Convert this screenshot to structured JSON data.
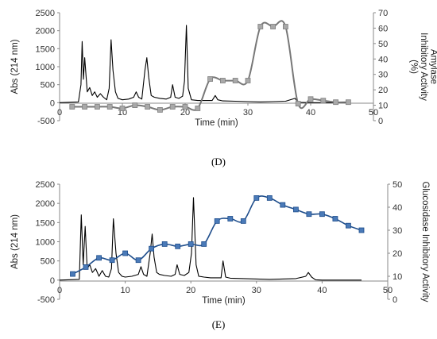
{
  "chart_data": [
    {
      "type": "line",
      "panel_label": "(D)",
      "xlabel": "Time (min)",
      "ylabel": "Abs (214 nm)",
      "ylabel_right": "Amylase Inhibitory Activity (%)",
      "xlim": [
        0,
        50
      ],
      "xticks": [
        "0",
        "10",
        "20",
        "30",
        "40",
        "50"
      ],
      "ylim": [
        -500,
        2500
      ],
      "yticks": [
        "-500",
        "0",
        "500",
        "1000",
        "1500",
        "2000",
        "2500"
      ],
      "ylim_right": [
        0,
        70
      ],
      "yticks_right": [
        "0",
        "10",
        "20",
        "30",
        "40",
        "50",
        "60",
        "70"
      ],
      "absorbance": {
        "x": [
          0,
          3,
          3.4,
          3.6,
          3.8,
          4.0,
          4.4,
          4.8,
          5.2,
          5.6,
          6.0,
          6.5,
          7.0,
          7.5,
          7.9,
          8.2,
          8.5,
          8.9,
          9.3,
          10,
          11,
          11.8,
          12.2,
          12.6,
          13.1,
          13.6,
          13.9,
          14.2,
          14.6,
          15.1,
          16,
          17,
          17.7,
          18.0,
          18.4,
          19,
          19.6,
          19.9,
          20.2,
          20.5,
          21,
          22,
          24.3,
          24.8,
          25.2,
          26,
          28,
          30,
          32,
          34,
          36,
          37.5,
          38,
          40,
          42,
          44,
          46
        ],
        "y": [
          0,
          20,
          500,
          1700,
          650,
          1250,
          300,
          420,
          200,
          300,
          150,
          250,
          150,
          80,
          400,
          1750,
          900,
          300,
          120,
          80,
          100,
          150,
          300,
          150,
          100,
          900,
          1250,
          700,
          200,
          150,
          120,
          100,
          150,
          500,
          150,
          120,
          180,
          600,
          2150,
          400,
          80,
          60,
          60,
          200,
          80,
          50,
          40,
          30,
          20,
          30,
          40,
          120,
          10,
          0,
          0,
          0,
          0
        ]
      },
      "activity": {
        "x": [
          2,
          4,
          6,
          8,
          10,
          12,
          14,
          16,
          18,
          20,
          22,
          24,
          26,
          28,
          30,
          32,
          34,
          36,
          38,
          40,
          42,
          44,
          46
        ],
        "y": [
          9,
          9,
          9,
          9,
          8,
          10,
          9,
          7,
          9,
          9,
          8,
          27,
          26,
          26,
          26,
          61,
          61,
          61,
          11,
          14,
          13,
          12,
          12
        ]
      }
    },
    {
      "type": "line",
      "panel_label": "(E)",
      "xlabel": "Time (min)",
      "ylabel": "Abs (214 nm)",
      "ylabel_right": "Glucosidase Inhibitory Activity",
      "xlim": [
        0,
        50
      ],
      "xticks": [
        "0",
        "10",
        "20",
        "30",
        "40",
        "50"
      ],
      "ylim": [
        -500,
        2500
      ],
      "yticks": [
        "-500",
        "0",
        "500",
        "1000",
        "1500",
        "2000",
        "2500"
      ],
      "ylim_right": [
        0,
        50
      ],
      "yticks_right": [
        "0",
        "10",
        "20",
        "30",
        "40",
        "50"
      ],
      "absorbance": {
        "x": [
          0,
          3,
          3.3,
          3.6,
          3.9,
          4.2,
          4.6,
          5,
          5.5,
          6,
          6.5,
          7,
          7.5,
          7.9,
          8.2,
          8.6,
          9,
          9.5,
          10,
          11,
          12,
          12.4,
          12.8,
          13.3,
          13.8,
          14.1,
          14.4,
          14.8,
          15.2,
          16,
          17,
          17.6,
          17.9,
          18.3,
          19,
          19.7,
          20.1,
          20.4,
          20.8,
          21.2,
          22,
          23,
          24.6,
          24.9,
          25.3,
          26,
          28,
          30,
          32,
          34,
          36,
          37.5,
          37.9,
          38.4,
          39,
          40,
          42,
          44,
          46
        ],
        "y": [
          0,
          20,
          1700,
          400,
          1400,
          300,
          400,
          200,
          300,
          100,
          250,
          100,
          80,
          300,
          1600,
          700,
          200,
          100,
          80,
          100,
          150,
          350,
          150,
          100,
          700,
          1200,
          600,
          200,
          150,
          120,
          100,
          150,
          400,
          150,
          120,
          200,
          700,
          2150,
          400,
          100,
          80,
          60,
          60,
          500,
          80,
          50,
          40,
          30,
          20,
          30,
          40,
          100,
          200,
          80,
          10,
          0,
          0,
          0,
          0
        ]
      },
      "activity": {
        "x": [
          2,
          4,
          6,
          8,
          10,
          12,
          14,
          16,
          18,
          20,
          22,
          24,
          26,
          28,
          30,
          32,
          34,
          36,
          38,
          40,
          42,
          44,
          46
        ],
        "y": [
          11,
          14,
          18,
          17,
          20,
          17,
          22,
          24,
          23,
          24,
          24,
          34,
          35,
          34,
          44,
          44,
          41,
          39,
          37,
          37,
          35,
          32,
          30
        ]
      }
    }
  ]
}
